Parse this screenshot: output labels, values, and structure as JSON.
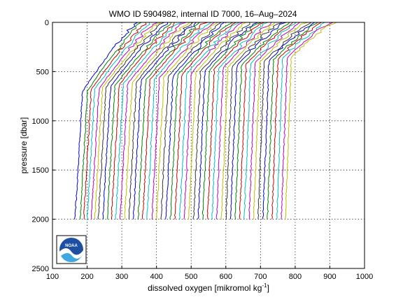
{
  "chart_data": {
    "type": "line",
    "title": "WMO ID 5904982, internal ID 7000, 16–Aug–2024",
    "xlabel": "dissolved oxygen [mikromol kg",
    "xlabel_sup": "-1",
    "xlabel_end": "]",
    "ylabel": "pressure [dbar]",
    "xlim": [
      100,
      1000
    ],
    "ylim": [
      0,
      2500
    ],
    "y_reversed": true,
    "grid": true,
    "xticks": [
      100,
      200,
      300,
      400,
      500,
      600,
      700,
      800,
      900,
      1000
    ],
    "yticks": [
      0,
      500,
      1000,
      1500,
      2000,
      2500
    ],
    "logo": "noaa-logo",
    "palette": [
      "#0000cc",
      "#008000",
      "#cc0000",
      "#00bfbf",
      "#bf00bf",
      "#bfbf00",
      "#333333"
    ],
    "profile_bottom_values": [
      165,
      180,
      190,
      200,
      212,
      222,
      232,
      245,
      258,
      270,
      282,
      295,
      308,
      320,
      333,
      347,
      360,
      373,
      387,
      400,
      413,
      427,
      440,
      453,
      467,
      480,
      493,
      507,
      520,
      533,
      547,
      560,
      573,
      587,
      600,
      613,
      627,
      640,
      653,
      667,
      680,
      693,
      707,
      720,
      733,
      747,
      760,
      772
    ],
    "profile_top_values": [
      345,
      358,
      372,
      385,
      398,
      410,
      422,
      434,
      446,
      458,
      470,
      482,
      494,
      506,
      518,
      530,
      542,
      554,
      566,
      578,
      590,
      602,
      614,
      626,
      638,
      650,
      662,
      674,
      686,
      698,
      710,
      722,
      734,
      746,
      758,
      770,
      782,
      794,
      806,
      818,
      830,
      842,
      854,
      866,
      878,
      890,
      902,
      915
    ],
    "profile_depth_max": 2000
  }
}
